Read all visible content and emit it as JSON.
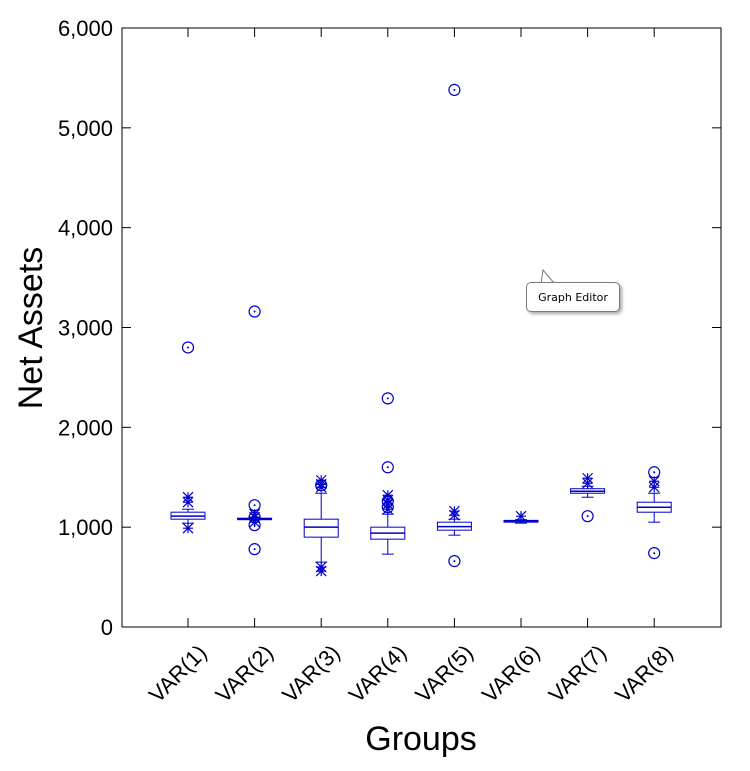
{
  "chart_data": {
    "type": "boxplot",
    "xlabel": "Groups",
    "ylabel": "Net Assets",
    "ylim": [
      0,
      6000
    ],
    "yticks": [
      "0",
      "1,000",
      "2,000",
      "3,000",
      "4,000",
      "5,000",
      "6,000"
    ],
    "ytick_values": [
      0,
      1000,
      2000,
      3000,
      4000,
      5000,
      6000
    ],
    "categories": [
      "VAR(1)",
      "VAR(2)",
      "VAR(3)",
      "VAR(4)",
      "VAR(5)",
      "VAR(6)",
      "VAR(7)",
      "VAR(8)"
    ],
    "series_color": "#0000cc",
    "groups": [
      {
        "q1": 1080,
        "median": 1110,
        "q3": 1150,
        "whisker_low": 1040,
        "whisker_high": 1180,
        "outliers_star": [
          990,
          1250,
          1300
        ],
        "outliers_circle": [
          2800
        ]
      },
      {
        "q1": 1075,
        "median": 1082,
        "q3": 1090,
        "whisker_low": 1075,
        "whisker_high": 1090,
        "outliers_star": [
          1050,
          1100,
          1130
        ],
        "outliers_circle": [
          780,
          1020,
          1100,
          1220,
          3160
        ]
      },
      {
        "q1": 900,
        "median": 1000,
        "q3": 1080,
        "whisker_low": 650,
        "whisker_high": 1340,
        "outliers_star": [
          560,
          600,
          1400,
          1430,
          1470
        ],
        "outliers_circle": [
          1420
        ]
      },
      {
        "q1": 880,
        "median": 940,
        "q3": 1000,
        "whisker_low": 730,
        "whisker_high": 1130,
        "outliers_star": [
          1180,
          1230,
          1270,
          1320
        ],
        "outliers_circle": [
          1200,
          1260,
          1600,
          2290
        ]
      },
      {
        "q1": 970,
        "median": 1005,
        "q3": 1050,
        "whisker_low": 920,
        "whisker_high": 1080,
        "outliers_star": [
          1120,
          1160
        ],
        "outliers_circle": [
          660,
          5380
        ]
      },
      {
        "q1": 1050,
        "median": 1060,
        "q3": 1068,
        "whisker_low": 1040,
        "whisker_high": 1075,
        "outliers_star": [
          1110
        ],
        "outliers_circle": []
      },
      {
        "q1": 1340,
        "median": 1360,
        "q3": 1385,
        "whisker_low": 1300,
        "whisker_high": 1410,
        "outliers_star": [
          1440,
          1490
        ],
        "outliers_circle": [
          1110
        ]
      },
      {
        "q1": 1150,
        "median": 1200,
        "q3": 1250,
        "whisker_low": 1050,
        "whisker_high": 1340,
        "outliers_star": [
          1400,
          1460
        ],
        "outliers_circle": [
          740,
          1550
        ]
      }
    ]
  },
  "tooltip": {
    "text": "Graph Editor"
  }
}
